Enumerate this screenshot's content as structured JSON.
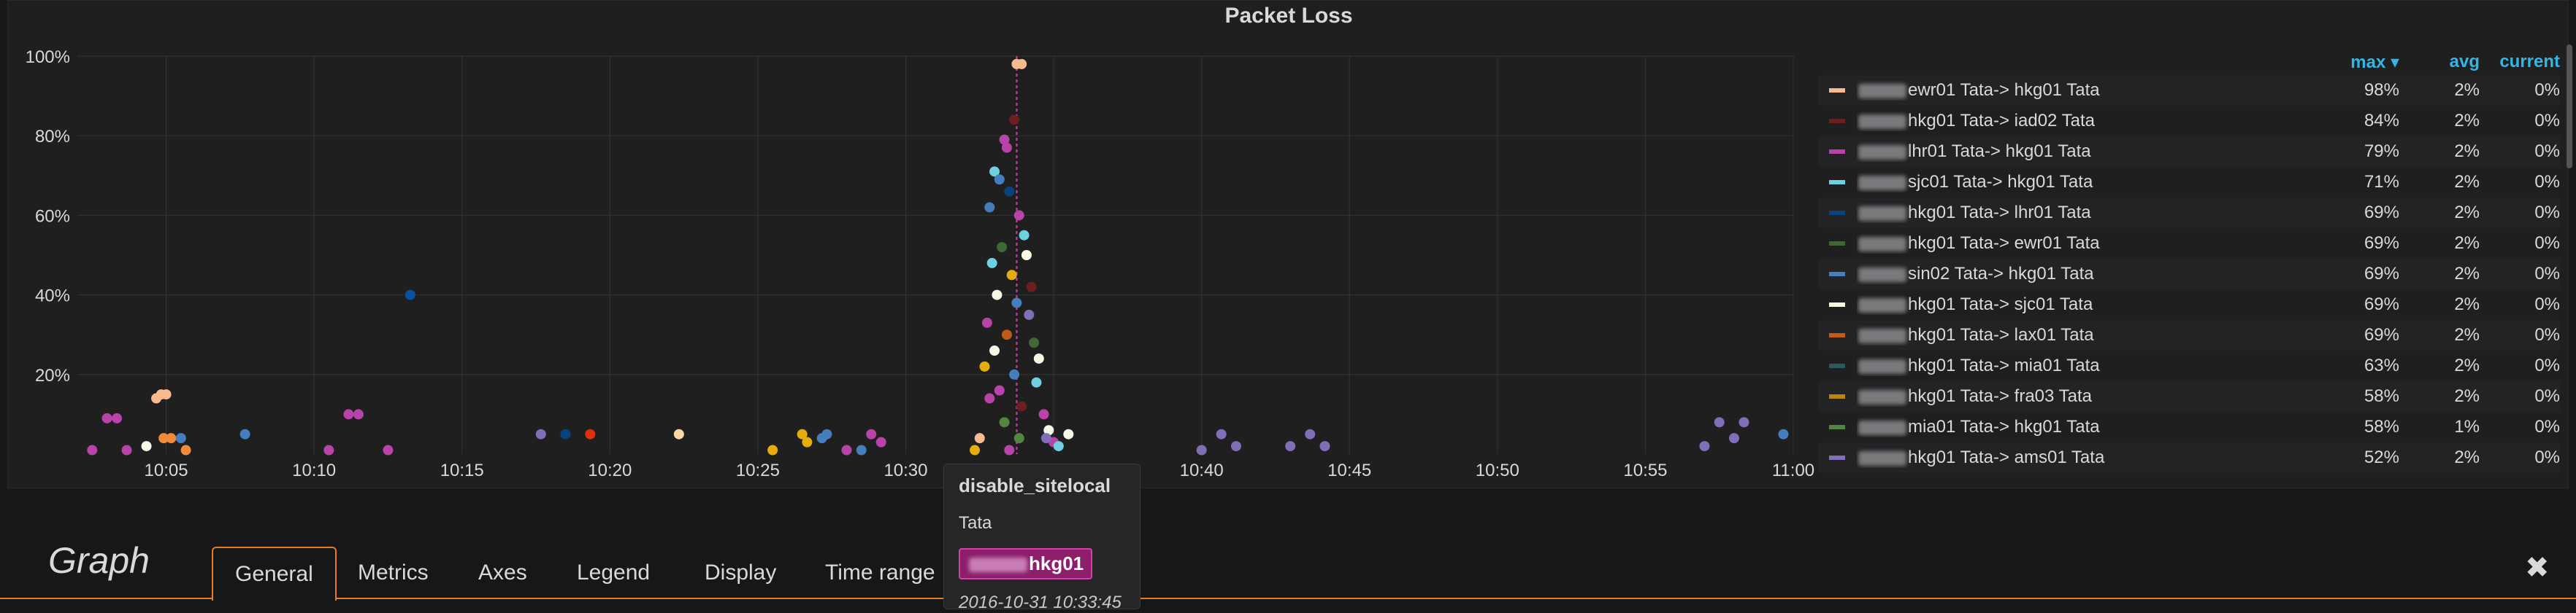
{
  "panel": {
    "title": "Packet Loss"
  },
  "chart_data": {
    "type": "scatter",
    "title": "Packet Loss",
    "xlabel": "",
    "ylabel": "",
    "x_ticks": [
      "10:05",
      "10:10",
      "10:15",
      "10:20",
      "10:25",
      "10:30",
      "10:35",
      "10:40",
      "10:45",
      "10:50",
      "10:55",
      "11:00"
    ],
    "y_ticks": [
      "20%",
      "40%",
      "60%",
      "80%",
      "100%"
    ],
    "xlim": [
      "10:02",
      "11:00"
    ],
    "ylim": [
      0,
      100
    ],
    "grid": true,
    "legend_placement": "right",
    "series": [
      {
        "name": "ewr01 Tata-> hkg01 Tata",
        "color": "#f9ba8f",
        "max": "98%",
        "avg": "2%",
        "current": "0%"
      },
      {
        "name": "hkg01 Tata-> iad02 Tata",
        "color": "#6d1f1f",
        "max": "84%",
        "avg": "2%",
        "current": "0%"
      },
      {
        "name": "lhr01 Tata-> hkg01 Tata",
        "color": "#ba43a9",
        "max": "79%",
        "avg": "2%",
        "current": "0%"
      },
      {
        "name": "sjc01 Tata-> hkg01 Tata",
        "color": "#6ed0e0",
        "max": "71%",
        "avg": "2%",
        "current": "0%"
      },
      {
        "name": "hkg01 Tata-> lhr01 Tata",
        "color": "#0a437c",
        "max": "69%",
        "avg": "2%",
        "current": "0%"
      },
      {
        "name": "hkg01 Tata-> ewr01 Tata",
        "color": "#3f6833",
        "max": "69%",
        "avg": "2%",
        "current": "0%"
      },
      {
        "name": "sin02 Tata-> hkg01 Tata",
        "color": "#447ebc",
        "max": "69%",
        "avg": "2%",
        "current": "0%"
      },
      {
        "name": "hkg01 Tata-> sjc01 Tata",
        "color": "#f4f9e5",
        "max": "69%",
        "avg": "2%",
        "current": "0%"
      },
      {
        "name": "hkg01 Tata-> lax01 Tata",
        "color": "#c15c17",
        "max": "69%",
        "avg": "2%",
        "current": "0%"
      },
      {
        "name": "hkg01 Tata-> mia01 Tata",
        "color": "#2f575e",
        "max": "63%",
        "avg": "2%",
        "current": "0%"
      },
      {
        "name": "hkg01 Tata-> fra03 Tata",
        "color": "#b7850a",
        "max": "58%",
        "avg": "2%",
        "current": "0%"
      },
      {
        "name": "mia01 Tata-> hkg01 Tata",
        "color": "#508642",
        "max": "58%",
        "avg": "1%",
        "current": "0%"
      },
      {
        "name": "hkg01 Tata-> ams01 Tata",
        "color": "#806eb7",
        "max": "52%",
        "avg": "2%",
        "current": "0%"
      }
    ],
    "points": [
      {
        "t": "10:02:30",
        "y": 1,
        "c": "#ba43a9"
      },
      {
        "t": "10:03:00",
        "y": 9,
        "c": "#ba43a9"
      },
      {
        "t": "10:03:20",
        "y": 9,
        "c": "#ba43a9"
      },
      {
        "t": "10:03:40",
        "y": 1,
        "c": "#ba43a9"
      },
      {
        "t": "10:04:20",
        "y": 2,
        "c": "#f4f9e5"
      },
      {
        "t": "10:04:40",
        "y": 14,
        "c": "#f9ba8f"
      },
      {
        "t": "10:04:50",
        "y": 15,
        "c": "#f9ba8f"
      },
      {
        "t": "10:04:55",
        "y": 4,
        "c": "#f18a3b"
      },
      {
        "t": "10:05:00",
        "y": 15,
        "c": "#f9ba8f"
      },
      {
        "t": "10:05:10",
        "y": 4,
        "c": "#f18a3b"
      },
      {
        "t": "10:05:30",
        "y": 4,
        "c": "#447ebc"
      },
      {
        "t": "10:05:40",
        "y": 1,
        "c": "#f18a3b"
      },
      {
        "t": "10:07:40",
        "y": 5,
        "c": "#447ebc"
      },
      {
        "t": "10:10:30",
        "y": 1,
        "c": "#ba43a9"
      },
      {
        "t": "10:11:10",
        "y": 10,
        "c": "#ba43a9"
      },
      {
        "t": "10:11:30",
        "y": 10,
        "c": "#ba43a9"
      },
      {
        "t": "10:12:30",
        "y": 1,
        "c": "#ba43a9"
      },
      {
        "t": "10:13:15",
        "y": 40,
        "c": "#0a50a1"
      },
      {
        "t": "10:17:40",
        "y": 5,
        "c": "#806eb7"
      },
      {
        "t": "10:18:30",
        "y": 5,
        "c": "#0a437c"
      },
      {
        "t": "10:19:20",
        "y": 5,
        "c": "#e02f0f"
      },
      {
        "t": "10:22:20",
        "y": 5,
        "c": "#f9d9a0"
      },
      {
        "t": "10:25:30",
        "y": 1,
        "c": "#e5ac0e"
      },
      {
        "t": "10:26:30",
        "y": 5,
        "c": "#e5ac0e"
      },
      {
        "t": "10:26:40",
        "y": 3,
        "c": "#e5ac0e"
      },
      {
        "t": "10:27:10",
        "y": 4,
        "c": "#447ebc"
      },
      {
        "t": "10:27:20",
        "y": 5,
        "c": "#447ebc"
      },
      {
        "t": "10:28:00",
        "y": 1,
        "c": "#ba43a9"
      },
      {
        "t": "10:28:30",
        "y": 1,
        "c": "#447ebc"
      },
      {
        "t": "10:28:50",
        "y": 5,
        "c": "#ba43a9"
      },
      {
        "t": "10:29:10",
        "y": 3,
        "c": "#ba43a9"
      },
      {
        "t": "10:33:45",
        "y": 98,
        "c": "#f9ba8f"
      },
      {
        "t": "10:33:55",
        "y": 98,
        "c": "#f9ba8f"
      },
      {
        "t": "10:33:20",
        "y": 79,
        "c": "#ba43a9"
      },
      {
        "t": "10:33:25",
        "y": 77,
        "c": "#ba43a9"
      },
      {
        "t": "10:33:40",
        "y": 84,
        "c": "#6d1f1f"
      },
      {
        "t": "10:33:00",
        "y": 71,
        "c": "#6ed0e0"
      },
      {
        "t": "10:33:10",
        "y": 69,
        "c": "#447ebc"
      },
      {
        "t": "10:32:50",
        "y": 62,
        "c": "#447ebc"
      },
      {
        "t": "10:33:30",
        "y": 66,
        "c": "#0a437c"
      },
      {
        "t": "10:33:50",
        "y": 60,
        "c": "#ba43a9"
      },
      {
        "t": "10:34:00",
        "y": 55,
        "c": "#6ed0e0"
      },
      {
        "t": "10:33:15",
        "y": 52,
        "c": "#3f6833"
      },
      {
        "t": "10:34:05",
        "y": 50,
        "c": "#f4f9e5"
      },
      {
        "t": "10:32:55",
        "y": 48,
        "c": "#6ed0e0"
      },
      {
        "t": "10:33:35",
        "y": 45,
        "c": "#e5ac0e"
      },
      {
        "t": "10:34:15",
        "y": 42,
        "c": "#6d1f1f"
      },
      {
        "t": "10:33:05",
        "y": 40,
        "c": "#f4f9e5"
      },
      {
        "t": "10:33:45",
        "y": 38,
        "c": "#447ebc"
      },
      {
        "t": "10:34:10",
        "y": 35,
        "c": "#806eb7"
      },
      {
        "t": "10:32:45",
        "y": 33,
        "c": "#ba43a9"
      },
      {
        "t": "10:33:25",
        "y": 30,
        "c": "#c15c17"
      },
      {
        "t": "10:34:20",
        "y": 28,
        "c": "#3f6833"
      },
      {
        "t": "10:33:00",
        "y": 26,
        "c": "#f4f9e5"
      },
      {
        "t": "10:34:30",
        "y": 24,
        "c": "#f4f9e5"
      },
      {
        "t": "10:32:40",
        "y": 22,
        "c": "#e5ac0e"
      },
      {
        "t": "10:33:40",
        "y": 20,
        "c": "#447ebc"
      },
      {
        "t": "10:34:25",
        "y": 18,
        "c": "#6ed0e0"
      },
      {
        "t": "10:33:10",
        "y": 16,
        "c": "#ba43a9"
      },
      {
        "t": "10:32:50",
        "y": 14,
        "c": "#ba43a9"
      },
      {
        "t": "10:33:55",
        "y": 12,
        "c": "#6d1f1f"
      },
      {
        "t": "10:34:40",
        "y": 10,
        "c": "#ba43a9"
      },
      {
        "t": "10:33:20",
        "y": 8,
        "c": "#508642"
      },
      {
        "t": "10:34:50",
        "y": 6,
        "c": "#f4f9e5"
      },
      {
        "t": "10:32:30",
        "y": 4,
        "c": "#f9ba8f"
      },
      {
        "t": "10:33:50",
        "y": 4,
        "c": "#508642"
      },
      {
        "t": "10:35:00",
        "y": 3,
        "c": "#ba43a9"
      },
      {
        "t": "10:32:20",
        "y": 1,
        "c": "#e5ac0e"
      },
      {
        "t": "10:33:30",
        "y": 1,
        "c": "#ba43a9"
      },
      {
        "t": "10:35:10",
        "y": 2,
        "c": "#6ed0e0"
      },
      {
        "t": "10:34:45",
        "y": 4,
        "c": "#806eb7"
      },
      {
        "t": "10:35:30",
        "y": 5,
        "c": "#f4f9e5"
      },
      {
        "t": "10:40:00",
        "y": 1,
        "c": "#806eb7"
      },
      {
        "t": "10:40:40",
        "y": 5,
        "c": "#806eb7"
      },
      {
        "t": "10:41:10",
        "y": 2,
        "c": "#806eb7"
      },
      {
        "t": "10:43:00",
        "y": 2,
        "c": "#806eb7"
      },
      {
        "t": "10:43:40",
        "y": 5,
        "c": "#806eb7"
      },
      {
        "t": "10:44:10",
        "y": 2,
        "c": "#806eb7"
      },
      {
        "t": "10:57:00",
        "y": 2,
        "c": "#806eb7"
      },
      {
        "t": "10:57:30",
        "y": 8,
        "c": "#806eb7"
      },
      {
        "t": "10:58:00",
        "y": 4,
        "c": "#806eb7"
      },
      {
        "t": "10:58:20",
        "y": 8,
        "c": "#806eb7"
      },
      {
        "t": "10:59:40",
        "y": 5,
        "c": "#447ebc"
      }
    ],
    "annotation_time": "10:33:45"
  },
  "legend": {
    "headers": {
      "max": "max ▾",
      "avg": "avg",
      "current": "current"
    }
  },
  "tooltip": {
    "title": "disable_sitelocal",
    "text": "Tata",
    "tag": "hkg01",
    "time": "2016-10-31 10:33:45"
  },
  "editor": {
    "panel_type": "Graph",
    "tabs": [
      "General",
      "Metrics",
      "Axes",
      "Legend",
      "Display",
      "Time range"
    ],
    "active_tab": "General",
    "close_glyph": "✖"
  },
  "icons": {
    "close": "close-icon",
    "sort": "sort-desc-icon"
  }
}
